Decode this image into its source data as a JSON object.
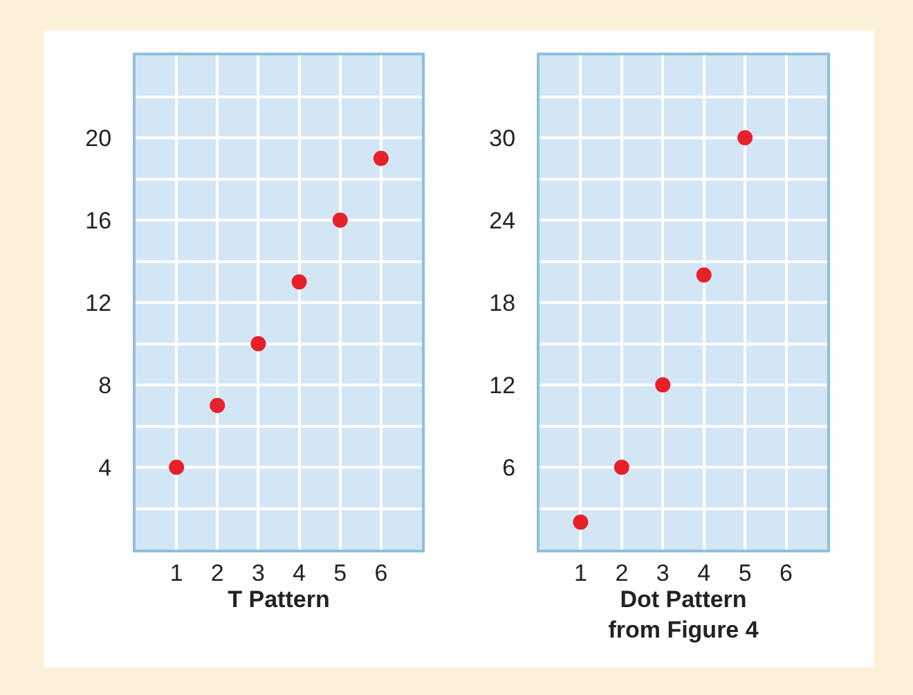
{
  "chart_data": [
    {
      "type": "scatter",
      "xlabel": "T Pattern",
      "x": [
        1,
        2,
        3,
        4,
        5,
        6
      ],
      "values": [
        4,
        7,
        10,
        13,
        16,
        19
      ],
      "color": "#e8202a",
      "marker": "circle",
      "xlim": [
        0,
        7
      ],
      "xticks": [
        1,
        2,
        3,
        4,
        5,
        6
      ],
      "ylim": [
        0,
        24
      ],
      "yticks": [
        {
          "value": 2,
          "label": null
        },
        4,
        {
          "value": 6,
          "label": null
        },
        8,
        {
          "value": 10,
          "label": null
        },
        12,
        {
          "value": 14,
          "label": null
        },
        16,
        {
          "value": 18,
          "label": null
        },
        20,
        {
          "value": 22,
          "label": null
        }
      ],
      "grid": true
    },
    {
      "type": "scatter",
      "xlabel": "Dot Pattern\nfrom Figure 4",
      "x": [
        1,
        2,
        3,
        4,
        5
      ],
      "values": [
        2,
        6,
        12,
        20,
        30
      ],
      "color": "#e8202a",
      "marker": "circle",
      "xlim": [
        0,
        7
      ],
      "xticks": [
        1,
        2,
        3,
        4,
        5,
        6
      ],
      "ylim": [
        0,
        36
      ],
      "yticks": [
        {
          "value": 3,
          "label": null
        },
        6,
        {
          "value": 9,
          "label": null
        },
        12,
        {
          "value": 15,
          "label": null
        },
        18,
        {
          "value": 21,
          "label": null
        },
        24,
        {
          "value": 27,
          "label": null
        },
        30,
        {
          "value": 33,
          "label": null
        }
      ],
      "grid": true
    }
  ]
}
